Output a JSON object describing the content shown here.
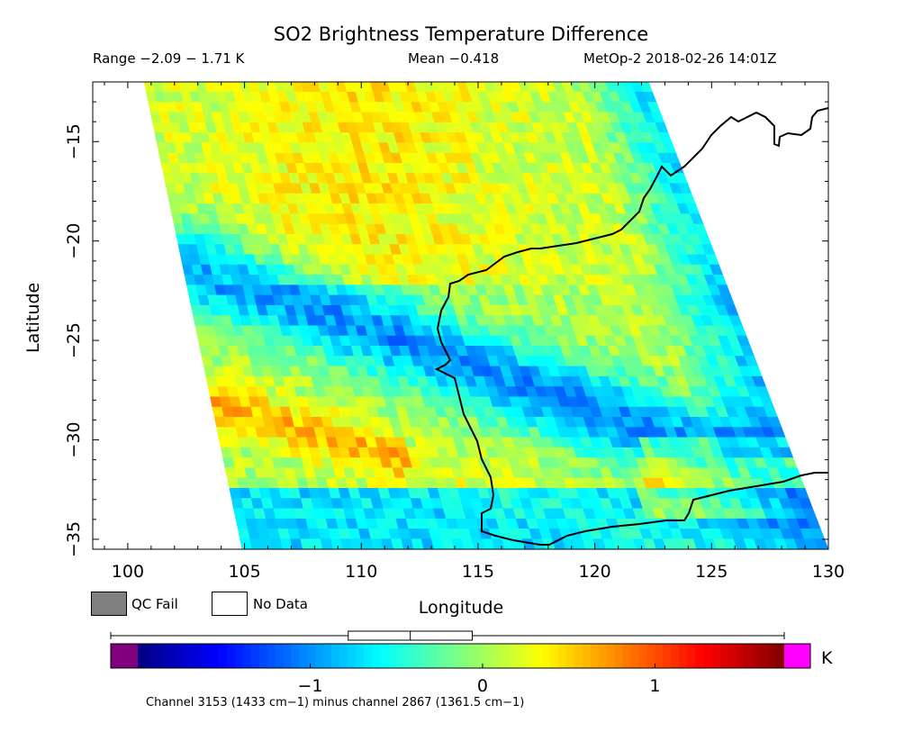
{
  "header": {
    "title": "SO2 Brightness Temperature Difference",
    "range": "Range −2.09 − 1.71 K",
    "mean": "Mean −0.418",
    "satellite": "MetOp-2 2018-02-26 14:01Z"
  },
  "legend": {
    "qc_fail": "QC Fail",
    "no_data": "No Data",
    "qc_fail_color": "#808080",
    "no_data_color": "#ffffff"
  },
  "colorbar": {
    "unit": "K",
    "tick_labels": [
      "−1",
      "0",
      "1"
    ],
    "tick_values": [
      -1,
      0,
      1
    ],
    "range": [
      -2.0,
      1.75
    ],
    "underflow_color": "#800080",
    "overflow_color": "#ff00ff",
    "boxplot": {
      "min": -2.09,
      "q1": -0.75,
      "median": -0.4,
      "q3": -0.05,
      "max": 1.71
    }
  },
  "footnote": "Channel 3153 (1433 cm−1) minus channel 2867 (1361.5 cm−1)",
  "chart_data": {
    "type": "heatmap",
    "title": "SO2 Brightness Temperature Difference",
    "xlabel": "Longitude",
    "ylabel": "Latitude",
    "xlim": [
      98.5,
      130
    ],
    "ylim": [
      -35.5,
      -12
    ],
    "xticks": [
      100,
      105,
      110,
      115,
      120,
      125,
      130
    ],
    "yticks": [
      -15,
      -20,
      -25,
      -30,
      -35
    ],
    "xtick_labels": [
      "100",
      "105",
      "110",
      "115",
      "120",
      "125",
      "130"
    ],
    "ytick_labels": [
      "−15",
      "−20",
      "−25",
      "−30",
      "−35"
    ],
    "value_range": [
      -2.09,
      1.71
    ],
    "mean": -0.418,
    "unit": "K",
    "colormap": "jet",
    "swath_corners": [
      [
        100.7,
        -12
      ],
      [
        122.3,
        -12
      ],
      [
        130,
        -35.5
      ],
      [
        104.9,
        -35.5
      ]
    ],
    "features": [
      {
        "region": "north of -22",
        "value": 0.1
      },
      {
        "region": "southwest band near -28",
        "value": 0.4
      },
      {
        "region": "diagonal band 108-118 E",
        "value": -1.0
      },
      {
        "region": "south of -33",
        "value": -0.8
      },
      {
        "region": "eastern swath edge",
        "value": -1.5
      }
    ]
  }
}
